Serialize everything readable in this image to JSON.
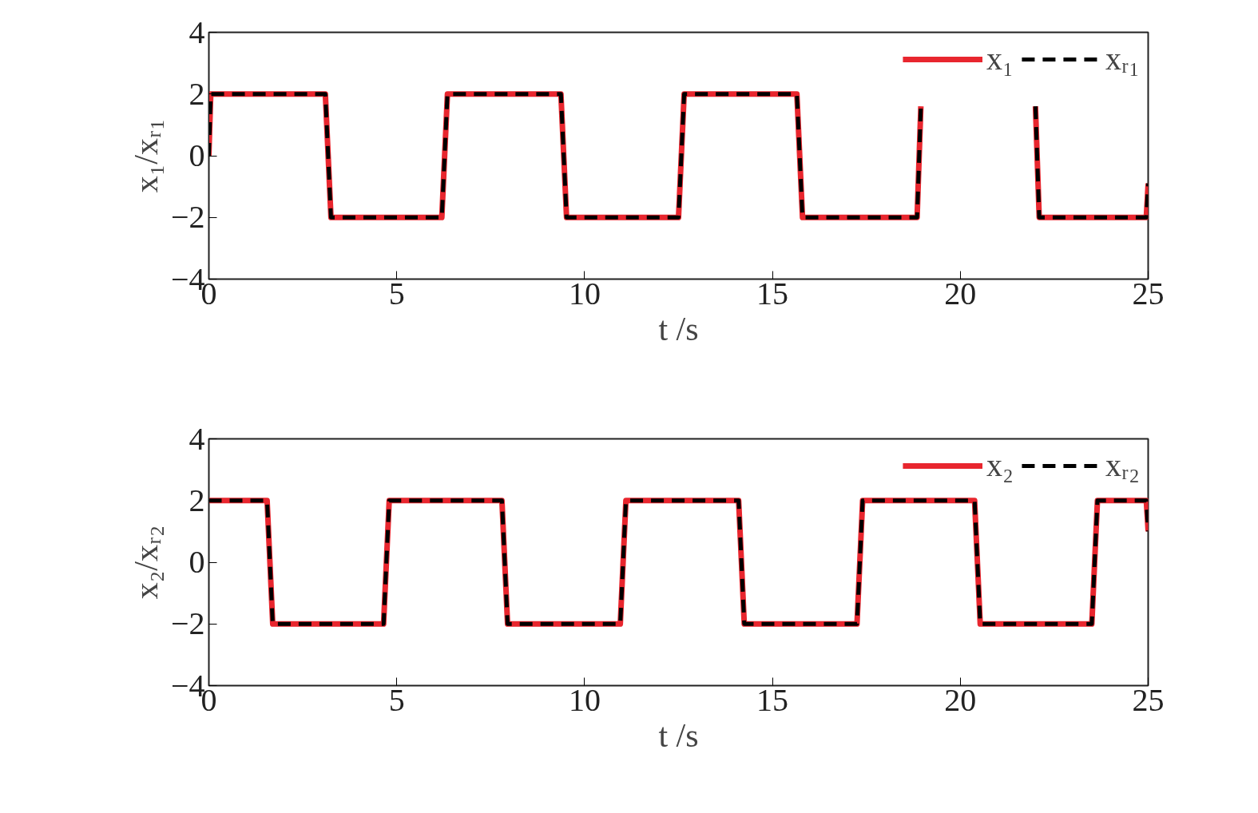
{
  "chart_data": [
    {
      "type": "line",
      "xlabel": "t /s",
      "ylabel": "x₁/xᵣ₁",
      "xlim": [
        0,
        25
      ],
      "xticks": [
        0,
        5,
        10,
        15,
        20,
        25
      ],
      "ylim": [
        -4,
        4
      ],
      "yticks": [
        -4,
        -2,
        0,
        2,
        4
      ],
      "grid": false,
      "legend": "top right",
      "x": [
        0,
        0.05,
        3.1,
        3.25,
        6.2,
        6.35,
        9.37,
        9.52,
        12.5,
        12.65,
        15.65,
        15.8,
        18.85,
        18.95,
        20.5,
        22.0,
        22.1,
        24.95,
        25
      ],
      "series": [
        {
          "name": "x₁",
          "color": "#e8262e",
          "line_style": "solid",
          "values": [
            0,
            2,
            2,
            -2,
            -2,
            2,
            2,
            -2,
            -2,
            2,
            2,
            -2,
            -2,
            1.6,
            null,
            1.6,
            -2,
            -2,
            -0.9
          ]
        },
        {
          "name": "xᵣ₁",
          "color": "#000000",
          "line_style": "dashed",
          "values": [
            0,
            2,
            2,
            -2,
            -2,
            2,
            2,
            -2,
            -2,
            2,
            2,
            -2,
            -2,
            1.6,
            null,
            1.6,
            -2,
            -2,
            -0.9
          ]
        }
      ]
    },
    {
      "type": "line",
      "xlabel": "t /s",
      "ylabel": "x₂/xᵣ₂",
      "xlim": [
        0,
        25
      ],
      "xticks": [
        0,
        5,
        10,
        15,
        20,
        25
      ],
      "ylim": [
        -4,
        4
      ],
      "yticks": [
        -4,
        -2,
        0,
        2,
        4
      ],
      "grid": false,
      "legend": "top right",
      "x": [
        0,
        1.55,
        1.7,
        4.65,
        4.8,
        7.8,
        7.95,
        10.95,
        11.1,
        14.1,
        14.25,
        17.25,
        17.4,
        20.38,
        20.53,
        23.5,
        23.65,
        24.95,
        25
      ],
      "series": [
        {
          "name": "x₂",
          "color": "#e8262e",
          "line_style": "solid",
          "values": [
            2,
            2,
            -2,
            -2,
            2,
            2,
            -2,
            -2,
            2,
            2,
            -2,
            -2,
            2,
            2,
            -2,
            -2,
            2,
            2,
            1
          ]
        },
        {
          "name": "xᵣ₂",
          "color": "#000000",
          "line_style": "dashed",
          "values": [
            2,
            2,
            -2,
            -2,
            2,
            2,
            -2,
            -2,
            2,
            2,
            -2,
            -2,
            2,
            2,
            -2,
            -2,
            2,
            2,
            1
          ]
        }
      ]
    }
  ]
}
